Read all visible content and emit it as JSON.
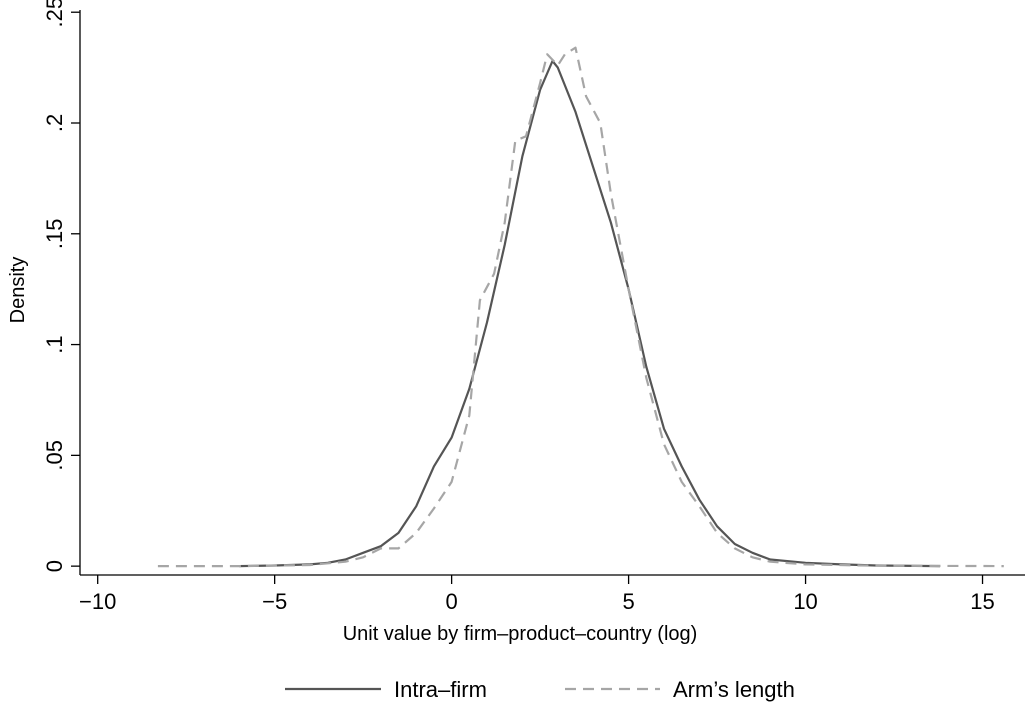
{
  "chart_data": {
    "type": "line",
    "xlabel": "Unit value by firm–product–country (log)",
    "ylabel": "Density",
    "xlim": [
      -10.5,
      16.2
    ],
    "ylim": [
      -0.004,
      0.251
    ],
    "x_ticks": [
      {
        "value": -10,
        "label": "−10"
      },
      {
        "value": -5,
        "label": "−5"
      },
      {
        "value": 0,
        "label": "0"
      },
      {
        "value": 5,
        "label": "5"
      },
      {
        "value": 10,
        "label": "10"
      },
      {
        "value": 15,
        "label": "15"
      }
    ],
    "y_ticks": [
      {
        "value": 0,
        "label": "0"
      },
      {
        "value": 0.05,
        "label": ".05"
      },
      {
        "value": 0.1,
        "label": ".1"
      },
      {
        "value": 0.15,
        "label": ".15"
      },
      {
        "value": 0.2,
        "label": ".2"
      },
      {
        "value": 0.25,
        "label": ".25"
      }
    ],
    "grid": false,
    "legend_position": "bottom",
    "series": [
      {
        "name": "Intra–firm",
        "color": "#555555",
        "dash": "solid",
        "points": [
          [
            -6,
            0.0
          ],
          [
            -5,
            0.0003
          ],
          [
            -4,
            0.0008
          ],
          [
            -3.5,
            0.0015
          ],
          [
            -3,
            0.003
          ],
          [
            -2.5,
            0.006
          ],
          [
            -2,
            0.009
          ],
          [
            -1.5,
            0.015
          ],
          [
            -1,
            0.027
          ],
          [
            -0.5,
            0.045
          ],
          [
            0,
            0.058
          ],
          [
            0.5,
            0.08
          ],
          [
            1,
            0.11
          ],
          [
            1.5,
            0.145
          ],
          [
            2,
            0.185
          ],
          [
            2.5,
            0.215
          ],
          [
            2.85,
            0.228
          ],
          [
            3,
            0.225
          ],
          [
            3.5,
            0.205
          ],
          [
            4,
            0.18
          ],
          [
            4.5,
            0.155
          ],
          [
            5,
            0.125
          ],
          [
            5.5,
            0.09
          ],
          [
            6,
            0.062
          ],
          [
            6.5,
            0.045
          ],
          [
            7,
            0.03
          ],
          [
            7.5,
            0.018
          ],
          [
            8,
            0.01
          ],
          [
            8.5,
            0.006
          ],
          [
            9,
            0.003
          ],
          [
            10,
            0.0015
          ],
          [
            11,
            0.0008
          ],
          [
            12,
            0.0003
          ],
          [
            13.8,
            0.0
          ]
        ]
      },
      {
        "name": "Arm’s length",
        "color": "#a6a6a6",
        "dash": "dashed",
        "points": [
          [
            -8.3,
            0.0
          ],
          [
            -6,
            0.0
          ],
          [
            -4,
            0.0005
          ],
          [
            -3,
            0.002
          ],
          [
            -2.5,
            0.004
          ],
          [
            -2,
            0.008
          ],
          [
            -1.5,
            0.008
          ],
          [
            -1,
            0.015
          ],
          [
            -0.5,
            0.026
          ],
          [
            0,
            0.038
          ],
          [
            0.5,
            0.068
          ],
          [
            0.8,
            0.12
          ],
          [
            1.2,
            0.132
          ],
          [
            1.5,
            0.155
          ],
          [
            1.8,
            0.192
          ],
          [
            2.1,
            0.194
          ],
          [
            2.5,
            0.218
          ],
          [
            2.7,
            0.231
          ],
          [
            3,
            0.226
          ],
          [
            3.2,
            0.231
          ],
          [
            3.5,
            0.234
          ],
          [
            3.8,
            0.212
          ],
          [
            4.2,
            0.2
          ],
          [
            4.5,
            0.168
          ],
          [
            5,
            0.125
          ],
          [
            5.5,
            0.085
          ],
          [
            6,
            0.055
          ],
          [
            6.5,
            0.038
          ],
          [
            7,
            0.027
          ],
          [
            7.5,
            0.015
          ],
          [
            8,
            0.008
          ],
          [
            8.5,
            0.004
          ],
          [
            9,
            0.002
          ],
          [
            10,
            0.0008
          ],
          [
            12,
            0.0002
          ],
          [
            15.6,
            0.0
          ]
        ]
      }
    ]
  }
}
